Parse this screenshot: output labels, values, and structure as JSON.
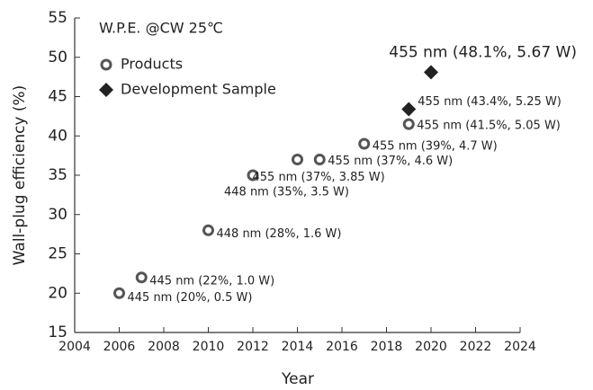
{
  "chart_data": {
    "type": "scatter",
    "x_label": "Year",
    "y_label": "Wall-plug efficiency (%)",
    "legend_title": "W.P.E. @CW 25℃",
    "xlim": [
      2004,
      2024
    ],
    "xticks": [
      2004,
      2006,
      2008,
      2010,
      2012,
      2014,
      2016,
      2018,
      2020,
      2022,
      2024
    ],
    "ylim": [
      15,
      55
    ],
    "yticks": [
      15,
      20,
      25,
      30,
      35,
      40,
      45,
      50,
      55
    ],
    "legend": "upper left",
    "series": [
      {
        "name": "Products",
        "marker": "circle",
        "color": "#555555",
        "x": [
          2006,
          2007,
          2010,
          2012,
          2014,
          2015,
          2017,
          2019
        ],
        "values": [
          20,
          22,
          28,
          35,
          37,
          37,
          39,
          41.5
        ],
        "point_labels": [
          "445 nm (20%, 0.5 W)",
          "445 nm (22%, 1.0 W)",
          "448 nm (28%, 1.6 W)",
          "448 nm (35%, 3.5 W)",
          "455 nm (37%, 3.85 W)",
          "455 nm (37%, 4.6 W)",
          "455 nm (39%, 4.7 W)",
          "455 nm (41.5%, 5.05 W)"
        ]
      },
      {
        "name": "Development Sample",
        "marker": "diamond",
        "color": "#222222",
        "x": [
          2019,
          2020
        ],
        "values": [
          43.4,
          48.1
        ],
        "point_labels": [
          "455 nm (43.4%, 5.25 W)",
          "455 nm (48.1%, 5.67 W)"
        ]
      }
    ]
  }
}
